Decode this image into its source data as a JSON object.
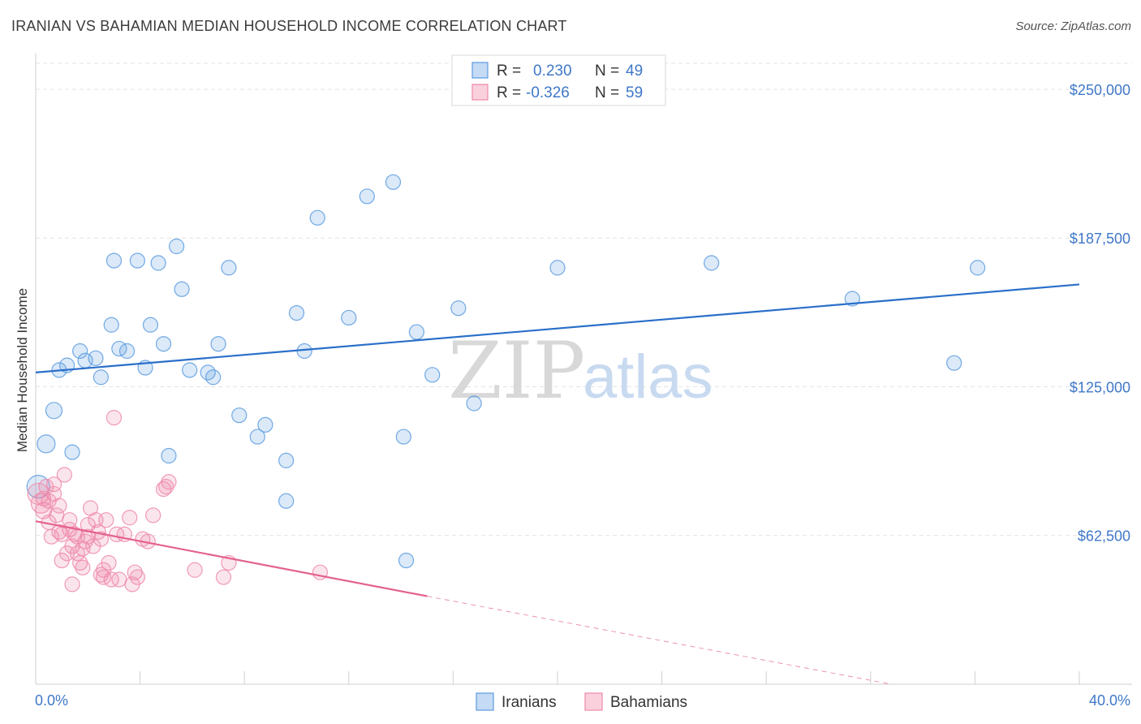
{
  "title": "IRANIAN VS BAHAMIAN MEDIAN HOUSEHOLD INCOME CORRELATION CHART",
  "source": "Source: ZipAtlas.com",
  "watermark": {
    "zip": "ZIP",
    "atlas": "atlas"
  },
  "legend_box": {
    "r_label": "R =",
    "n_label": "N =",
    "rows": [
      {
        "r": "0.230",
        "n": "49",
        "color": "#5b9be0"
      },
      {
        "r": "-0.326",
        "n": "59",
        "color": "#ee8aaa"
      }
    ]
  },
  "bottom_legend": [
    {
      "label": "Iranians",
      "color": "#5b9be0"
    },
    {
      "label": "Bahamians",
      "color": "#ee8aaa"
    }
  ],
  "chart_data": {
    "type": "scatter",
    "title": "IRANIAN VS BAHAMIAN MEDIAN HOUSEHOLD INCOME CORRELATION CHART",
    "xlabel": "",
    "ylabel": "Median Household Income",
    "xlim": [
      0,
      40
    ],
    "ylim": [
      0,
      265000
    ],
    "x_tick_labels": [
      "0.0%",
      "40.0%"
    ],
    "y_ticks": [
      62500,
      125000,
      187500,
      250000
    ],
    "y_tick_labels": [
      "$62,500",
      "$125,000",
      "$187,500",
      "$250,000"
    ],
    "grid": true,
    "legend_position": "top-center",
    "series": [
      {
        "name": "Iranians",
        "color": "#5b9be0",
        "trend": {
          "x": [
            0,
            40
          ],
          "y": [
            131000,
            168000
          ]
        },
        "points": [
          [
            0.1,
            83000,
            14
          ],
          [
            0.4,
            101000,
            11
          ],
          [
            0.7,
            115000,
            10
          ],
          [
            0.9,
            132000,
            9
          ],
          [
            1.2,
            134000,
            9
          ],
          [
            1.4,
            97500,
            9
          ],
          [
            1.7,
            140000,
            9
          ],
          [
            1.9,
            136000,
            9
          ],
          [
            2.3,
            137000,
            9
          ],
          [
            2.5,
            129000,
            9
          ],
          [
            2.9,
            151000,
            9
          ],
          [
            3.0,
            178000,
            9
          ],
          [
            3.2,
            141000,
            9
          ],
          [
            3.5,
            140000,
            9
          ],
          [
            3.9,
            178000,
            9
          ],
          [
            4.2,
            133000,
            9
          ],
          [
            4.4,
            151000,
            9
          ],
          [
            4.7,
            177000,
            9
          ],
          [
            4.9,
            143000,
            9
          ],
          [
            5.1,
            96000,
            9
          ],
          [
            5.4,
            184000,
            9
          ],
          [
            5.6,
            166000,
            9
          ],
          [
            5.9,
            132000,
            9
          ],
          [
            6.6,
            131000,
            9
          ],
          [
            6.8,
            129000,
            9
          ],
          [
            7.0,
            143000,
            9
          ],
          [
            7.4,
            175000,
            9
          ],
          [
            7.8,
            113000,
            9
          ],
          [
            8.5,
            104000,
            9
          ],
          [
            8.8,
            109000,
            9
          ],
          [
            9.6,
            94000,
            9
          ],
          [
            9.6,
            77000,
            9
          ],
          [
            10.0,
            156000,
            9
          ],
          [
            10.3,
            140000,
            9
          ],
          [
            10.8,
            196000,
            9
          ],
          [
            12.0,
            154000,
            9
          ],
          [
            12.7,
            205000,
            9
          ],
          [
            13.7,
            211000,
            9
          ],
          [
            14.1,
            104000,
            9
          ],
          [
            14.6,
            148000,
            9
          ],
          [
            14.2,
            52000,
            9
          ],
          [
            15.2,
            130000,
            9
          ],
          [
            16.2,
            158000,
            9
          ],
          [
            16.8,
            118000,
            9
          ],
          [
            20.0,
            175000,
            9
          ],
          [
            25.9,
            177000,
            9
          ],
          [
            31.3,
            162000,
            9
          ],
          [
            35.2,
            135000,
            9
          ],
          [
            36.1,
            175000,
            9
          ]
        ]
      },
      {
        "name": "Bahamians",
        "color": "#ee8aaa",
        "trend": {
          "x": [
            0,
            15
          ],
          "y": [
            68500,
            37000
          ]
        },
        "trend_dashed_to": {
          "x": 40,
          "y": -15000
        },
        "points": [
          [
            0.1,
            80000,
            13
          ],
          [
            0.2,
            76000,
            12
          ],
          [
            0.3,
            73000,
            10
          ],
          [
            0.4,
            83000,
            9
          ],
          [
            0.5,
            77000,
            9
          ],
          [
            0.6,
            62000,
            9
          ],
          [
            0.7,
            84000,
            9
          ],
          [
            0.7,
            80000,
            9
          ],
          [
            0.8,
            71000,
            9
          ],
          [
            0.9,
            75000,
            9
          ],
          [
            0.9,
            64000,
            9
          ],
          [
            1.0,
            63000,
            9
          ],
          [
            1.1,
            88000,
            9
          ],
          [
            1.2,
            55000,
            9
          ],
          [
            1.3,
            69000,
            9
          ],
          [
            1.3,
            65000,
            9
          ],
          [
            1.4,
            58000,
            9
          ],
          [
            1.4,
            42000,
            9
          ],
          [
            1.5,
            63000,
            9
          ],
          [
            1.6,
            62000,
            9
          ],
          [
            1.6,
            55000,
            9
          ],
          [
            1.7,
            51000,
            9
          ],
          [
            1.8,
            57000,
            9
          ],
          [
            1.9,
            60000,
            9
          ],
          [
            2.0,
            67000,
            9
          ],
          [
            2.0,
            62000,
            9
          ],
          [
            2.1,
            74000,
            9
          ],
          [
            2.2,
            58000,
            9
          ],
          [
            2.3,
            69000,
            9
          ],
          [
            2.4,
            64000,
            9
          ],
          [
            2.5,
            61000,
            9
          ],
          [
            2.5,
            46000,
            9
          ],
          [
            2.6,
            48000,
            9
          ],
          [
            2.7,
            69000,
            9
          ],
          [
            2.8,
            51000,
            9
          ],
          [
            2.9,
            44000,
            9
          ],
          [
            3.0,
            112000,
            9
          ],
          [
            3.1,
            63000,
            9
          ],
          [
            3.2,
            44000,
            9
          ],
          [
            3.4,
            63000,
            9
          ],
          [
            3.6,
            70000,
            9
          ],
          [
            3.8,
            47000,
            9
          ],
          [
            3.9,
            45000,
            9
          ],
          [
            4.1,
            61000,
            9
          ],
          [
            4.3,
            60000,
            9
          ],
          [
            4.5,
            71000,
            9
          ],
          [
            4.9,
            82000,
            9
          ],
          [
            5.1,
            85000,
            9
          ],
          [
            6.1,
            48000,
            9
          ],
          [
            7.2,
            45000,
            9
          ],
          [
            7.4,
            51000,
            9
          ],
          [
            10.9,
            47000,
            9
          ],
          [
            0.3,
            78000,
            9
          ],
          [
            0.5,
            68000,
            9
          ],
          [
            1.0,
            52000,
            9
          ],
          [
            1.8,
            49000,
            9
          ],
          [
            2.6,
            45000,
            9
          ],
          [
            3.7,
            42000,
            9
          ],
          [
            5.0,
            83000,
            9
          ]
        ]
      }
    ]
  }
}
